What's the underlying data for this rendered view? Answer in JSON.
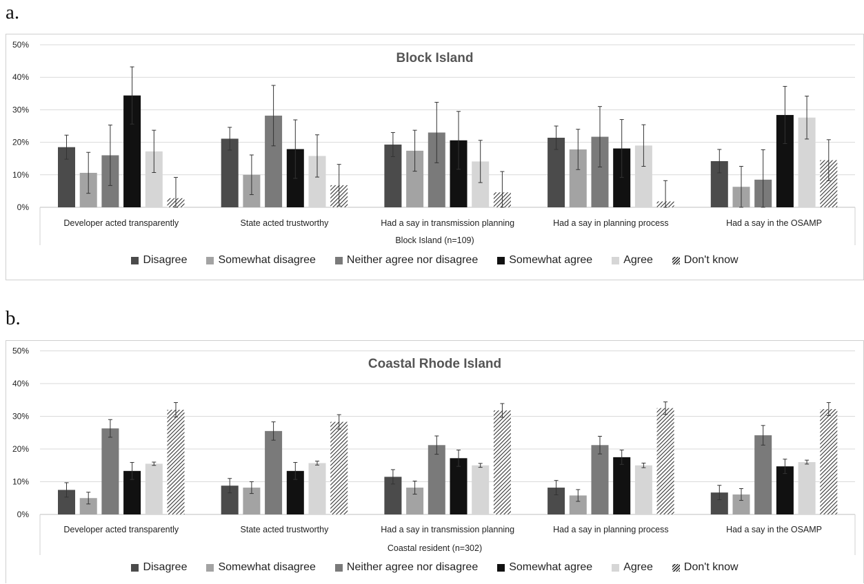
{
  "panel_labels": {
    "a": "a.",
    "b": "b."
  },
  "colors": {
    "Disagree": "#4b4b4b",
    "Somewhat disagree": "#a3a3a3",
    "Neither agree nor disagree": "#7a7a7a",
    "Somewhat agree": "#111111",
    "Agree": "#d6d6d6",
    "Don't know": "hatch"
  },
  "chart_data": [
    {
      "type": "bar",
      "title": "Block Island",
      "xlabel": "Block Island (n=109)",
      "ylim": [
        0,
        50
      ],
      "yticks": [
        "0%",
        "10%",
        "20%",
        "30%",
        "40%",
        "50%"
      ],
      "grid": true,
      "legend_position": "bottom",
      "categories": [
        "Developer acted transparently",
        "State acted trustworthy",
        "Had a say in transmission planning",
        "Had a say in planning process",
        "Had a say in the OSAMP"
      ],
      "series": [
        {
          "name": "Disagree",
          "values": [
            18.5,
            21.1,
            19.3,
            21.4,
            14.2
          ],
          "err": [
            3.7,
            3.5,
            3.7,
            3.6,
            3.6
          ]
        },
        {
          "name": "Somewhat disagree",
          "values": [
            10.6,
            10.0,
            17.4,
            17.8,
            6.3
          ],
          "err": [
            6.3,
            6.1,
            6.3,
            6.2,
            6.3
          ]
        },
        {
          "name": "Neither agree nor disagree",
          "values": [
            16.0,
            28.2,
            23.0,
            21.7,
            8.5
          ],
          "err": [
            9.3,
            9.3,
            9.3,
            9.3,
            9.2
          ]
        },
        {
          "name": "Somewhat agree",
          "values": [
            34.4,
            17.9,
            20.6,
            18.1,
            28.4
          ],
          "err": [
            8.8,
            9.0,
            8.9,
            8.9,
            8.8
          ]
        },
        {
          "name": "Agree",
          "values": [
            17.2,
            15.8,
            14.1,
            19.0,
            27.6
          ],
          "err": [
            6.5,
            6.5,
            6.5,
            6.4,
            6.6
          ]
        },
        {
          "name": "Don't know",
          "values": [
            2.8,
            6.8,
            4.6,
            1.8,
            14.5
          ],
          "err": [
            6.4,
            6.4,
            6.4,
            6.4,
            6.3
          ]
        }
      ]
    },
    {
      "type": "bar",
      "title": "Coastal Rhode Island",
      "xlabel": "Coastal resident (n=302)",
      "ylim": [
        0,
        50
      ],
      "yticks": [
        "0%",
        "10%",
        "20%",
        "30%",
        "40%",
        "50%"
      ],
      "grid": true,
      "legend_position": "bottom",
      "categories": [
        "Developer acted transparently",
        "State acted trustworthy",
        "Had a say in transmission planning",
        "Had a say in planning process",
        "Had a say in the OSAMP"
      ],
      "series": [
        {
          "name": "Disagree",
          "values": [
            7.5,
            8.8,
            11.5,
            8.2,
            6.7
          ],
          "err": [
            2.2,
            2.2,
            2.2,
            2.2,
            2.2
          ]
        },
        {
          "name": "Somewhat disagree",
          "values": [
            5.0,
            8.2,
            8.2,
            5.8,
            6.1
          ],
          "err": [
            1.8,
            1.8,
            2.0,
            1.8,
            1.8
          ]
        },
        {
          "name": "Neither agree nor disagree",
          "values": [
            26.3,
            25.5,
            21.2,
            21.2,
            24.2
          ],
          "err": [
            2.7,
            2.8,
            2.8,
            2.7,
            3.0
          ]
        },
        {
          "name": "Somewhat agree",
          "values": [
            13.3,
            13.3,
            17.2,
            17.5,
            14.7
          ],
          "err": [
            2.6,
            2.6,
            2.5,
            2.2,
            2.2
          ]
        },
        {
          "name": "Agree",
          "values": [
            15.5,
            15.7,
            15.0,
            15.0,
            16.0
          ],
          "err": [
            0.5,
            0.6,
            0.6,
            0.7,
            0.6
          ]
        },
        {
          "name": "Don't know",
          "values": [
            32.0,
            28.3,
            31.8,
            32.5,
            32.2
          ],
          "err": [
            2.2,
            2.2,
            2.1,
            1.9,
            2.0
          ]
        }
      ]
    }
  ]
}
